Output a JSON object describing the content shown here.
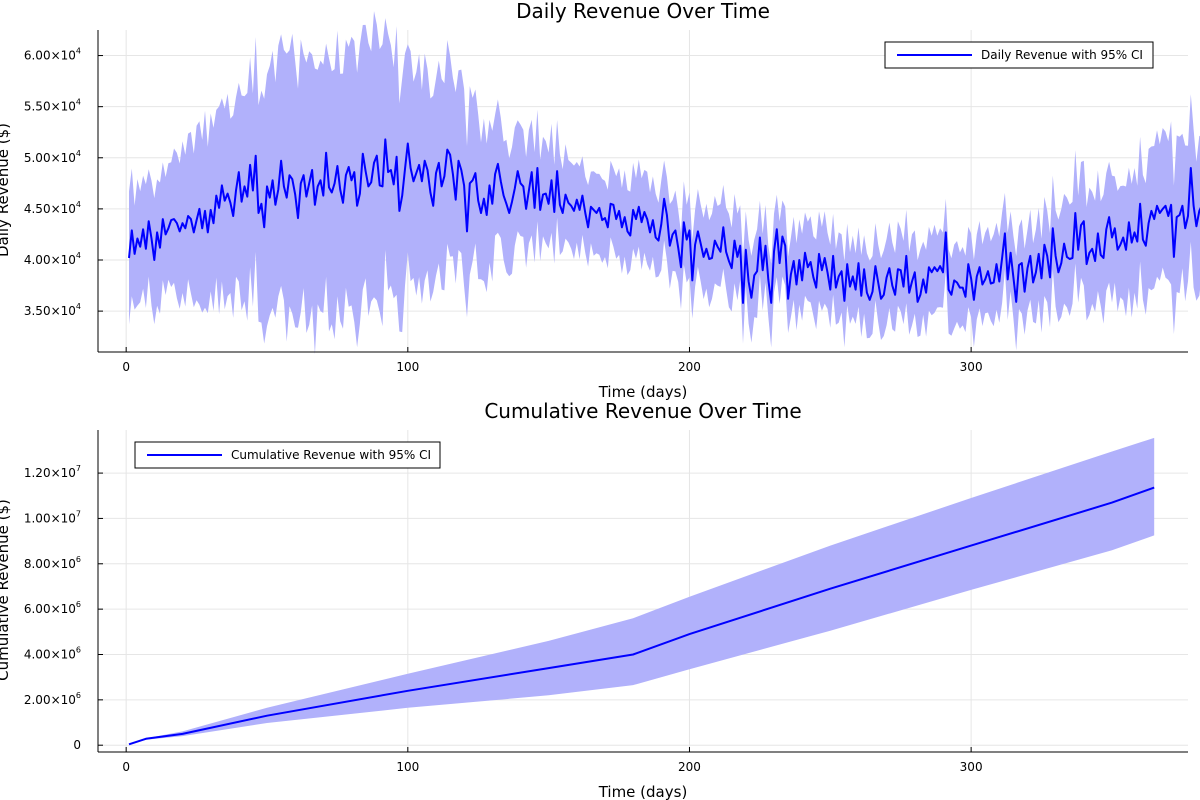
{
  "colors": {
    "line": "#0000ff",
    "band": "#b1b1fb",
    "grid": "#ececec"
  },
  "chart_data": [
    {
      "type": "line",
      "title": "Daily Revenue Over Time",
      "xlabel": "Time (days)",
      "ylabel": "Daily Revenue ($)",
      "xlim": [
        -10,
        377
      ],
      "ylim": [
        31000,
        62500
      ],
      "grid": true,
      "legend_position": "top-right",
      "xticks": [
        0,
        100,
        200,
        300
      ],
      "xtick_labels": [
        "0",
        "100",
        "200",
        "300"
      ],
      "yticks": [
        35000,
        40000,
        45000,
        50000,
        55000,
        60000
      ],
      "ytick_labels": [
        {
          "mantissa": "3.50×10",
          "exp": "4"
        },
        {
          "mantissa": "4.00×10",
          "exp": "4"
        },
        {
          "mantissa": "4.50×10",
          "exp": "4"
        },
        {
          "mantissa": "5.00×10",
          "exp": "4"
        },
        {
          "mantissa": "5.50×10",
          "exp": "4"
        },
        {
          "mantissa": "6.00×10",
          "exp": "4"
        }
      ],
      "series": [
        {
          "name": "Daily Revenue with 95% CI",
          "x_start": 1,
          "x_step": 1,
          "values": [
            40200,
            42900,
            40600,
            42100,
            41300,
            43000,
            41100,
            43800,
            42100,
            40000,
            42700,
            41200,
            44000,
            42500,
            43100,
            43900,
            44000,
            43600,
            42800,
            43600,
            43100,
            44300,
            44000,
            42700,
            43900,
            45000,
            43100,
            44800,
            42700,
            44900,
            43600,
            46300,
            45100,
            47300,
            45800,
            46500,
            45600,
            44300,
            46800,
            48600,
            45700,
            47200,
            46200,
            49300,
            46800,
            50200,
            44600,
            45500,
            43200,
            47200,
            46100,
            47800,
            45400,
            46900,
            49700,
            47200,
            46100,
            48300,
            47900,
            46400,
            44100,
            47500,
            48300,
            46200,
            47500,
            48800,
            45400,
            47200,
            47800,
            46300,
            50500,
            47100,
            46600,
            47500,
            49200,
            46900,
            45600,
            48300,
            49100,
            47800,
            48600,
            45300,
            46500,
            50400,
            48700,
            47200,
            47600,
            49500,
            50200,
            47300,
            47200,
            51800,
            48600,
            48800,
            47400,
            50100,
            44800,
            46300,
            48900,
            51400,
            49000,
            47700,
            48500,
            49300,
            47700,
            49700,
            48800,
            46600,
            45300,
            48500,
            49500,
            47200,
            48200,
            50800,
            50300,
            48400,
            45900,
            49700,
            48800,
            47300,
            42800,
            47500,
            47800,
            48500,
            45800,
            44600,
            46000,
            44400,
            47300,
            45500,
            48400,
            49400,
            47700,
            46300,
            45500,
            44600,
            45700,
            47000,
            48700,
            47500,
            47200,
            45000,
            46800,
            48600,
            45100,
            49000,
            44900,
            46400,
            46500,
            45500,
            47800,
            44700,
            48700,
            45400,
            44600,
            46400,
            45600,
            45300,
            44800,
            45900,
            44900,
            46300,
            44600,
            43200,
            45200,
            44900,
            44600,
            45100,
            43900,
            44100,
            43200,
            45500,
            45400,
            44000,
            44800,
            43200,
            44200,
            42800,
            42400,
            44900,
            44000,
            45200,
            43700,
            44700,
            44000,
            42700,
            43900,
            42200,
            41900,
            43500,
            46000,
            44400,
            41400,
            42500,
            42900,
            41200,
            39300,
            43700,
            42000,
            42900,
            38000,
            41500,
            42800,
            41600,
            40300,
            41100,
            40100,
            40200,
            41900,
            41300,
            40800,
            43200,
            40800,
            39900,
            39200,
            41900,
            40300,
            41400,
            35800,
            41000,
            37900,
            36300,
            38500,
            38900,
            42200,
            39000,
            41400,
            38100,
            35800,
            40800,
            43000,
            39700,
            42300,
            41400,
            36200,
            38600,
            39900,
            37600,
            40000,
            38000,
            40700,
            39300,
            39800,
            38300,
            37300,
            40600,
            39000,
            40200,
            38800,
            37100,
            40400,
            37300,
            38400,
            38900,
            36000,
            39600,
            37400,
            38400,
            37100,
            39700,
            36500,
            39100,
            36800,
            36100,
            36900,
            39400,
            37800,
            36200,
            36600,
            38300,
            39200,
            37500,
            36600,
            39100,
            39000,
            37400,
            40400,
            36800,
            37900,
            38800,
            35900,
            36600,
            38100,
            36800,
            39300,
            38800,
            39300,
            38900,
            39400,
            38800,
            42700,
            37100,
            36600,
            38000,
            37800,
            37300,
            37300,
            36400,
            39600,
            38200,
            36100,
            38400,
            39300,
            37600,
            38100,
            38900,
            37700,
            37800,
            39600,
            37900,
            40200,
            42600,
            38100,
            40700,
            38300,
            35900,
            39500,
            39700,
            36900,
            39200,
            40400,
            37800,
            38800,
            40600,
            38200,
            41500,
            40400,
            38300,
            43100,
            40400,
            38800,
            39700,
            41600,
            40300,
            40100,
            40200,
            44600,
            41000,
            43400,
            43800,
            39600,
            40700,
            41100,
            39900,
            42600,
            40500,
            40200,
            43000,
            44200,
            42200,
            43100,
            41000,
            41500,
            42200,
            41000,
            43700,
            41700,
            42700,
            41800,
            45500,
            42000,
            41400,
            43600,
            44800,
            44000,
            45300,
            44600,
            45000,
            45300,
            44300,
            45400,
            40300,
            44200,
            44400,
            45300,
            43100,
            44300,
            49000,
            45300,
            43300,
            44800,
            45400,
            45300
          ]
        }
      ],
      "ci_halfwidth_values": [
        6500,
        5800,
        5400,
        5700,
        5900,
        6000,
        6300,
        6100,
        6000,
        6400,
        6200,
        6300,
        6200,
        6000,
        6100,
        6300,
        6500,
        6700,
        6800,
        7000,
        7200,
        7400,
        7500,
        7700,
        7900,
        8100,
        8300,
        8500,
        8600,
        8700,
        8900,
        9000,
        9200,
        9300,
        9500,
        9700,
        9800,
        10000,
        10100,
        10200,
        10400,
        10500,
        10700,
        10800,
        11000,
        11100,
        11200,
        11400,
        11500,
        11600,
        11700,
        11800,
        11900,
        12000,
        12100,
        12200,
        12300,
        12300,
        12400,
        12500,
        12600,
        12600,
        12700,
        12700,
        12800,
        12800,
        12900,
        12900,
        12900,
        13000,
        13000,
        13000,
        13000,
        13000,
        13000,
        13000,
        13000,
        13000,
        13000,
        12900,
        12900,
        12900,
        12800,
        12800,
        12700,
        12700,
        12600,
        12600,
        12500,
        12400,
        12300,
        12300,
        12200,
        12100,
        12000,
        11900,
        11800,
        11700,
        11600,
        11500,
        11400,
        11200,
        11100,
        11000,
        10800,
        10700,
        10500,
        10400,
        10200,
        10100,
        9900,
        9800,
        9600,
        9500,
        9300,
        9100,
        9000,
        8800,
        8700,
        8500,
        8300,
        8200,
        8000,
        7900,
        7700,
        7500,
        7400,
        7200,
        7100,
        6900,
        6800,
        6700,
        6500,
        6400,
        6300,
        6100,
        6000,
        5900,
        5800,
        5700,
        5600,
        5500,
        5400,
        5300,
        5200,
        5100,
        5000,
        4900,
        4800,
        4800,
        4700,
        4600,
        4500,
        4500,
        4400,
        4400,
        4300,
        4300,
        4200,
        4200,
        4200,
        4100,
        4100,
        4100,
        4100,
        4100,
        4000,
        4000,
        4000,
        4000,
        4000,
        4000,
        4000,
        4000,
        4000,
        4000,
        4000,
        4000,
        4000,
        4000,
        4000,
        4000,
        4000,
        4000,
        4000,
        4000,
        4000,
        4000,
        4000,
        4000,
        4000,
        4000,
        4000,
        4000,
        4000,
        4000,
        4000,
        4000,
        4000,
        4000,
        4000,
        4000,
        4000,
        4000,
        4000,
        4000,
        4000,
        4000,
        4000,
        4000,
        4000,
        4000,
        4000,
        4000,
        4000,
        4000,
        4000,
        4000,
        4000,
        4000,
        4000,
        4000,
        4000,
        4000,
        4000,
        4000,
        4000,
        4000,
        4000,
        4000,
        4000,
        4000,
        4000,
        4000,
        4000,
        4000,
        4000,
        4000,
        4000,
        4000,
        4000,
        4000,
        4000,
        4000,
        4000,
        4000,
        4000,
        4000,
        4000,
        4000,
        4000,
        4000,
        4000,
        4000,
        4000,
        4000,
        4000,
        4000,
        4000,
        4000,
        4000,
        4000,
        4000,
        4000,
        4000,
        4000,
        4000,
        4000,
        4000,
        4000,
        4000,
        4000,
        4000,
        4000,
        4000,
        4000,
        4000,
        4000,
        4000,
        4000,
        4000,
        4000,
        4000,
        4000,
        4000,
        4000,
        4000,
        4000,
        4000,
        4000,
        4000,
        4000,
        4000,
        4000,
        4000,
        4000,
        4000,
        4000,
        4000,
        4000,
        4000,
        4000,
        4000,
        4000,
        4000,
        4000,
        4000,
        4000,
        4000,
        4000,
        4000,
        4100,
        4100,
        4100,
        4200,
        4200,
        4300,
        4300,
        4400,
        4400,
        4500,
        4500,
        4600,
        4600,
        4700,
        4700,
        4800,
        4800,
        4900,
        4900,
        5000,
        5000,
        5100,
        5100,
        5200,
        5200,
        5300,
        5300,
        5400,
        5400,
        5500,
        5500,
        5600,
        5600,
        5700,
        5700,
        5800,
        5800,
        5900,
        5900,
        6000,
        6000,
        6100,
        6100,
        6200,
        6200,
        6300,
        6300,
        6400,
        6400,
        6500,
        6500,
        6600,
        6600,
        6700,
        6700,
        6800,
        6800,
        6900,
        6900,
        7000,
        7000,
        7100,
        7100,
        7200
      ]
    },
    {
      "type": "line",
      "title": "Cumulative Revenue Over Time",
      "xlabel": "Time (days)",
      "ylabel": "Cumulative Revenue ($)",
      "xlim": [
        -10,
        377
      ],
      "ylim": [
        -300000,
        13900000
      ],
      "grid": true,
      "legend_position": "top-left",
      "xticks": [
        0,
        100,
        200,
        300
      ],
      "xtick_labels": [
        "0",
        "100",
        "200",
        "300"
      ],
      "yticks": [
        0,
        2000000,
        4000000,
        6000000,
        8000000,
        10000000,
        12000000
      ],
      "ytick_labels": [
        {
          "mantissa": "0",
          "exp": ""
        },
        {
          "mantissa": "2.00×10",
          "exp": "6"
        },
        {
          "mantissa": "4.00×10",
          "exp": "6"
        },
        {
          "mantissa": "6.00×10",
          "exp": "6"
        },
        {
          "mantissa": "8.00×10",
          "exp": "6"
        },
        {
          "mantissa": "1.00×10",
          "exp": "7"
        },
        {
          "mantissa": "1.20×10",
          "exp": "7"
        }
      ],
      "series": [
        {
          "name": "Cumulative Revenue with 95% CI",
          "x": [
            1,
            7,
            20,
            50,
            100,
            150,
            180,
            200,
            250,
            300,
            350,
            365
          ],
          "values": [
            40000,
            280000,
            500000,
            1300000,
            2400000,
            3400000,
            4000000,
            4900000,
            6900000,
            8800000,
            10700000,
            11360000
          ],
          "lower": [
            40000,
            240000,
            400000,
            980000,
            1650000,
            2200000,
            2650000,
            3350000,
            5050000,
            6850000,
            8600000,
            9250000
          ],
          "upper": [
            40000,
            300000,
            610000,
            1650000,
            3150000,
            4600000,
            5600000,
            6550000,
            8800000,
            10900000,
            12950000,
            13550000
          ]
        }
      ]
    }
  ]
}
